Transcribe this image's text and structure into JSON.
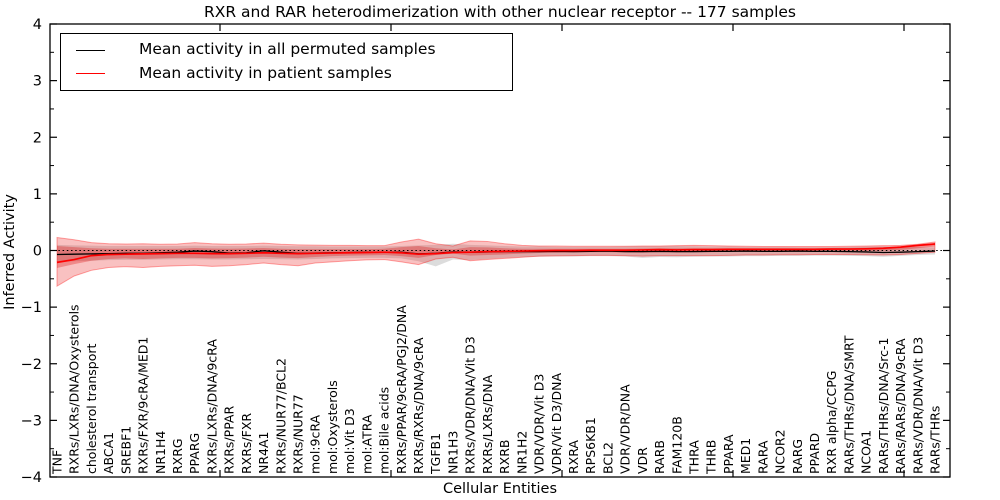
{
  "chart_data": {
    "type": "line",
    "title": "RXR and RAR heterodimerization with other nuclear receptor -- 177 samples",
    "xlabel": "Cellular Entities",
    "ylabel": "Inferred Activity",
    "ylim": [
      -4,
      4
    ],
    "yticks": [
      -4,
      -3,
      -2,
      -1,
      0,
      1,
      2,
      3,
      4
    ],
    "grid": false,
    "legend_position": "upper left",
    "zero_line": {
      "y": 0,
      "style": "dotted",
      "color": "#000000"
    },
    "categories": [
      "TNF",
      "RXRs/LXRs/DNA/Oxysterols",
      "cholesterol transport",
      "ABCA1",
      "SREBF1",
      "RXRs/FXR/9cRA/MED1",
      "NR1H4",
      "RXRG",
      "PPARG",
      "RXRs/LXRs/DNA/9cRA",
      "RXRs/PPAR",
      "RXRs/FXR",
      "NR4A1",
      "RXRs/NUR77/BCL2",
      "RXRs/NUR77",
      "mol:9cRA",
      "mol:Oxysterols",
      "mol:Vit D3",
      "mol:ATRA",
      "mol:Bile acids",
      "RXRs/PPAR/9cRA/PGJ2/DNA",
      "RXRs/RXRs/DNA/9cRA",
      "TGFB1",
      "NR1H3",
      "RXRs/VDR/DNA/Vit D3",
      "RXRs/LXRs/DNA",
      "RXRB",
      "NR1H2",
      "VDR/VDR/Vit D3",
      "VDR/Vit D3/DNA",
      "RXRA",
      "RPS6KB1",
      "BCL2",
      "VDR/VDR/DNA",
      "VDR",
      "RARB",
      "FAM120B",
      "THRA",
      "THRB",
      "PPARA",
      "MED1",
      "RARA",
      "NCOR2",
      "RARG",
      "PPARD",
      "RXR alpha/CCPG",
      "RARs/THRs/DNA/SMRT",
      "NCOA1",
      "RARs/THRs/DNA/Src-1",
      "RARs/RARs/DNA/9cRA",
      "RARs/VDR/DNA/Vit D3",
      "RARs/THRs"
    ],
    "series": [
      {
        "name": "Mean activity in all permuted samples",
        "color": "#000000",
        "values": [
          -0.07,
          -0.065,
          -0.06,
          -0.055,
          -0.05,
          -0.05,
          -0.04,
          -0.03,
          -0.01,
          -0.02,
          -0.045,
          -0.04,
          -0.005,
          -0.03,
          -0.05,
          -0.045,
          -0.04,
          -0.035,
          -0.03,
          -0.03,
          -0.03,
          -0.06,
          -0.05,
          -0.025,
          -0.03,
          -0.025,
          -0.02,
          -0.02,
          -0.02,
          -0.015,
          -0.02,
          -0.015,
          -0.01,
          -0.02,
          -0.02,
          -0.015,
          -0.02,
          -0.02,
          -0.015,
          -0.015,
          -0.01,
          -0.015,
          -0.015,
          -0.01,
          -0.015,
          -0.015,
          -0.02,
          -0.025,
          -0.035,
          -0.03,
          -0.02,
          -0.01
        ]
      },
      {
        "name": "Mean activity in patient samples",
        "color": "#ff0000",
        "values": [
          -0.21,
          -0.16,
          -0.09,
          -0.07,
          -0.065,
          -0.06,
          -0.055,
          -0.05,
          -0.05,
          -0.055,
          -0.055,
          -0.05,
          -0.04,
          -0.05,
          -0.055,
          -0.05,
          -0.045,
          -0.04,
          -0.035,
          -0.03,
          -0.04,
          -0.065,
          -0.055,
          -0.035,
          -0.03,
          -0.02,
          -0.015,
          -0.01,
          -0.005,
          0,
          0,
          0.005,
          0.005,
          0.005,
          0.01,
          0.015,
          0.01,
          0.015,
          0.015,
          0.02,
          0.02,
          0.02,
          0.02,
          0.02,
          0.02,
          0.025,
          0.025,
          0.03,
          0.04,
          0.06,
          0.09,
          0.115
        ]
      }
    ],
    "bands": [
      {
        "name": "permuted-range",
        "fill": "rgba(130,130,130,0.28)",
        "upper": [
          0.1,
          0.09,
          0.085,
          0.08,
          0.08,
          0.08,
          0.08,
          0.08,
          0.085,
          0.08,
          0.08,
          0.08,
          0.085,
          0.08,
          0.075,
          0.075,
          0.07,
          0.07,
          0.07,
          0.07,
          0.08,
          0.09,
          0.1,
          0.12,
          0.1,
          0.09,
          0.08,
          0.07,
          0.07,
          0.065,
          0.065,
          0.065,
          0.065,
          0.07,
          0.075,
          0.075,
          0.08,
          0.075,
          0.07,
          0.07,
          0.065,
          0.065,
          0.065,
          0.06,
          0.06,
          0.06,
          0.065,
          0.07,
          0.075,
          0.07,
          0.06,
          0.055
        ],
        "lower": [
          -0.2,
          -0.19,
          -0.18,
          -0.17,
          -0.165,
          -0.165,
          -0.16,
          -0.155,
          -0.155,
          -0.16,
          -0.16,
          -0.155,
          -0.15,
          -0.155,
          -0.16,
          -0.15,
          -0.14,
          -0.135,
          -0.13,
          -0.13,
          -0.14,
          -0.19,
          -0.28,
          -0.16,
          -0.17,
          -0.15,
          -0.13,
          -0.12,
          -0.11,
          -0.105,
          -0.105,
          -0.1,
          -0.1,
          -0.105,
          -0.13,
          -0.115,
          -0.12,
          -0.11,
          -0.105,
          -0.105,
          -0.1,
          -0.1,
          -0.095,
          -0.095,
          -0.09,
          -0.09,
          -0.095,
          -0.1,
          -0.11,
          -0.095,
          -0.08,
          -0.07
        ]
      },
      {
        "name": "patient-range-outer",
        "fill": "rgba(235,50,50,0.30)",
        "stroke": "rgba(255,0,0,0.35)",
        "upper": [
          0.23,
          0.19,
          0.14,
          0.12,
          0.115,
          0.12,
          0.11,
          0.115,
          0.14,
          0.12,
          0.11,
          0.115,
          0.13,
          0.11,
          0.1,
          0.095,
          0.09,
          0.09,
          0.085,
          0.085,
          0.15,
          0.2,
          0.12,
          0.08,
          0.17,
          0.16,
          0.12,
          0.09,
          0.08,
          0.08,
          0.075,
          0.075,
          0.075,
          0.075,
          0.08,
          0.08,
          0.085,
          0.09,
          0.085,
          0.08,
          0.075,
          0.07,
          0.07,
          0.07,
          0.07,
          0.07,
          0.075,
          0.08,
          0.085,
          0.09,
          0.11,
          0.15
        ],
        "lower": [
          -0.63,
          -0.45,
          -0.35,
          -0.3,
          -0.285,
          -0.3,
          -0.28,
          -0.27,
          -0.26,
          -0.28,
          -0.27,
          -0.25,
          -0.22,
          -0.25,
          -0.27,
          -0.22,
          -0.2,
          -0.18,
          -0.165,
          -0.16,
          -0.2,
          -0.25,
          -0.15,
          -0.12,
          -0.18,
          -0.16,
          -0.14,
          -0.12,
          -0.1,
          -0.095,
          -0.09,
          -0.085,
          -0.085,
          -0.09,
          -0.1,
          -0.09,
          -0.09,
          -0.09,
          -0.09,
          -0.085,
          -0.08,
          -0.08,
          -0.075,
          -0.075,
          -0.07,
          -0.07,
          -0.07,
          -0.075,
          -0.08,
          -0.07,
          -0.05,
          -0.03
        ]
      },
      {
        "name": "patient-range-inner",
        "fill": "rgba(220,20,20,0.32)",
        "upper": [
          0.08,
          0.06,
          0.04,
          0.03,
          0.03,
          0.03,
          0.03,
          0.03,
          0.045,
          0.035,
          0.03,
          0.035,
          0.045,
          0.03,
          0.025,
          0.025,
          0.025,
          0.025,
          0.025,
          0.03,
          0.06,
          0.08,
          0.04,
          0.02,
          0.06,
          0.055,
          0.04,
          0.03,
          0.03,
          0.03,
          0.03,
          0.03,
          0.03,
          0.03,
          0.035,
          0.04,
          0.04,
          0.04,
          0.04,
          0.04,
          0.04,
          0.04,
          0.04,
          0.04,
          0.04,
          0.045,
          0.045,
          0.05,
          0.055,
          0.07,
          0.09,
          0.13
        ],
        "lower": [
          -0.31,
          -0.24,
          -0.18,
          -0.15,
          -0.14,
          -0.15,
          -0.14,
          -0.13,
          -0.13,
          -0.14,
          -0.135,
          -0.125,
          -0.11,
          -0.125,
          -0.135,
          -0.115,
          -0.1,
          -0.09,
          -0.085,
          -0.08,
          -0.1,
          -0.13,
          -0.08,
          -0.055,
          -0.09,
          -0.08,
          -0.07,
          -0.055,
          -0.045,
          -0.04,
          -0.035,
          -0.03,
          -0.03,
          -0.035,
          -0.04,
          -0.03,
          -0.035,
          -0.03,
          -0.03,
          -0.025,
          -0.02,
          -0.02,
          -0.02,
          -0.02,
          -0.015,
          -0.01,
          -0.01,
          -0.01,
          -0.005,
          0.01,
          0.04,
          0.07
        ]
      }
    ]
  },
  "legend": {
    "entries": [
      {
        "label": "Mean activity in all permuted samples",
        "color": "#000000"
      },
      {
        "label": "Mean activity in patient samples",
        "color": "#ff0000"
      }
    ]
  }
}
